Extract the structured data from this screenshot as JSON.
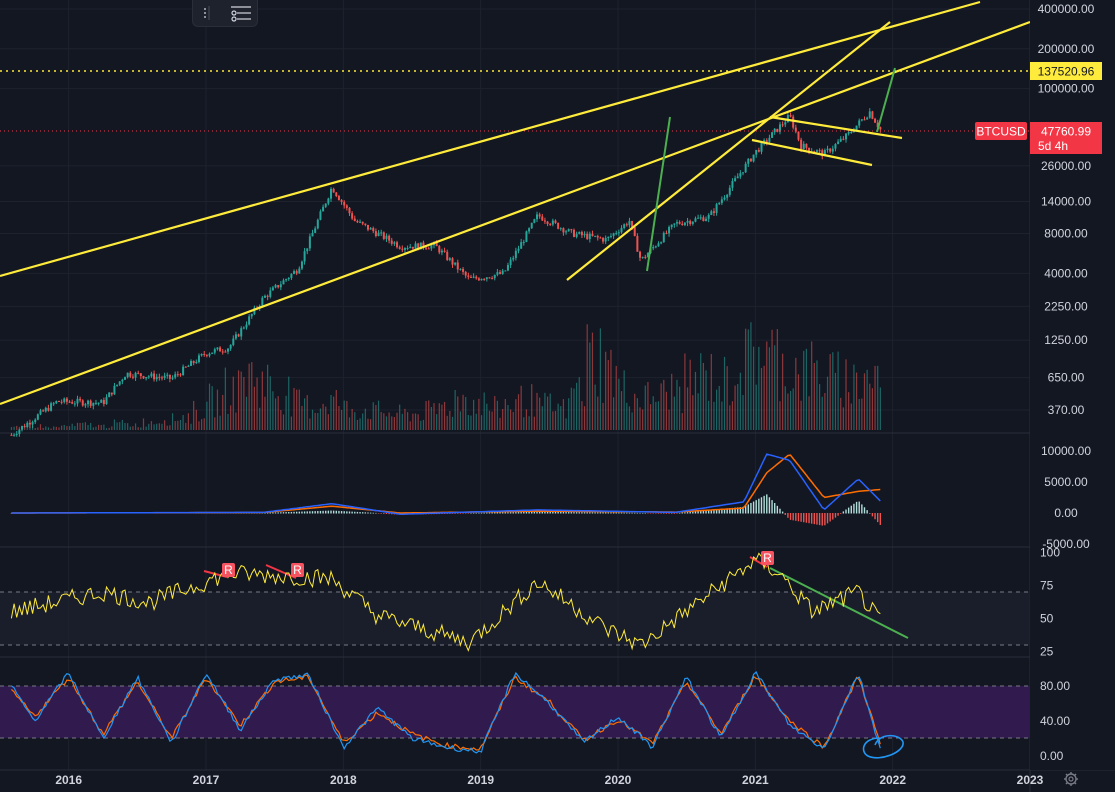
{
  "toolbar": {
    "icons": [
      "grid-icon",
      "object-tree-icon"
    ]
  },
  "price_axis": {
    "ticks": [
      "400000.00",
      "200000.00",
      "100000.00",
      "26000.00",
      "14000.00",
      "8000.00",
      "4000.00",
      "2250.00",
      "1250.00",
      "650.00",
      "370.00"
    ],
    "horizontal_level": "137520.96",
    "symbol": "BTCUSD",
    "last_price": "47760.99",
    "countdown": "5d 4h",
    "colors": {
      "level": "#ffeb3b",
      "last": "#f23645"
    }
  },
  "macd_axis": {
    "ticks": [
      "10000.00",
      "5000.00",
      "0.00",
      "-5000.00"
    ]
  },
  "rsi_axis": {
    "ticks": [
      "100",
      "75",
      "50",
      "25"
    ]
  },
  "stoch_axis": {
    "ticks": [
      "80.00",
      "40.00",
      "0.00"
    ]
  },
  "time_axis": {
    "ticks": [
      "2016",
      "2017",
      "2018",
      "2019",
      "2020",
      "2021",
      "2022",
      "2023"
    ]
  },
  "markers": {
    "label": "R"
  },
  "chart_data": [
    {
      "type": "line",
      "panel": "price",
      "title": "",
      "log_scale": true,
      "ylim": [
        300,
        400000
      ],
      "xlim": [
        "2015-07",
        "2023-01"
      ],
      "series": [
        {
          "x": [
            "2015-08",
            "2015-12",
            "2016-04",
            "2016-06",
            "2016-10",
            "2017-01",
            "2017-03",
            "2017-06",
            "2017-09",
            "2017-12",
            "2018-02",
            "2018-06",
            "2018-09",
            "2018-12",
            "2019-03",
            "2019-06",
            "2019-09",
            "2019-12",
            "2020-02",
            "2020-03",
            "2020-06",
            "2020-09",
            "2020-11",
            "2021-01",
            "2021-04",
            "2021-05",
            "2021-07",
            "2021-09",
            "2021-11",
            "2021-12"
          ],
          "values": [
            240,
            430,
            420,
            700,
            640,
            1000,
            1100,
            2600,
            4300,
            18000,
            10000,
            6400,
            6500,
            3600,
            4000,
            11000,
            8000,
            7200,
            10000,
            5000,
            9500,
            10800,
            19000,
            33000,
            62000,
            37000,
            32000,
            44000,
            67000,
            47760
          ]
        }
      ],
      "annotations": [
        "137520.96"
      ]
    },
    {
      "type": "bar",
      "panel": "volume",
      "title": "",
      "series": [
        {
          "values": [
            2,
            3,
            2,
            3,
            4,
            3,
            5,
            4,
            6,
            8,
            10,
            14,
            22,
            30,
            40,
            35,
            28,
            20,
            18,
            22,
            16,
            15,
            14,
            12,
            12,
            14,
            18,
            24,
            20,
            16,
            20,
            22,
            18,
            16,
            30,
            55,
            45,
            30,
            24,
            26,
            30,
            36,
            40,
            36,
            50,
            62,
            54,
            46,
            44,
            40,
            38,
            36,
            40,
            42
          ]
        }
      ]
    },
    {
      "type": "line",
      "panel": "macd",
      "ylim": [
        -6000,
        12000
      ],
      "series": [
        {
          "x": [
            "2015-08",
            "2017-06",
            "2017-12",
            "2018-06",
            "2019-06",
            "2020-06",
            "2020-12",
            "2021-02",
            "2021-04",
            "2021-07",
            "2021-10",
            "2021-12"
          ],
          "values": [
            0,
            100,
            1500,
            -200,
            500,
            100,
            1800,
            9500,
            8500,
            500,
            5500,
            1800
          ]
        },
        {
          "x": [
            "2015-08",
            "2017-06",
            "2017-12",
            "2018-06",
            "2019-06",
            "2020-06",
            "2020-12",
            "2021-02",
            "2021-04",
            "2021-07",
            "2021-10",
            "2021-12"
          ],
          "values": [
            0,
            80,
            1100,
            0,
            300,
            150,
            800,
            6500,
            9500,
            2500,
            3500,
            3800
          ]
        }
      ]
    },
    {
      "type": "line",
      "panel": "rsi",
      "ylim": [
        20,
        100
      ],
      "series": [
        {
          "x": [
            "2015-08",
            "2016-04",
            "2016-08",
            "2017-03",
            "2017-08",
            "2017-12",
            "2018-04",
            "2018-12",
            "2019-06",
            "2019-12",
            "2020-03",
            "2020-10",
            "2021-01",
            "2021-03",
            "2021-06",
            "2021-10",
            "2021-12"
          ],
          "values": [
            55,
            70,
            62,
            84,
            82,
            80,
            52,
            32,
            78,
            42,
            30,
            75,
            94,
            85,
            55,
            70,
            46
          ]
        }
      ]
    },
    {
      "type": "line",
      "panel": "stoch",
      "ylim": [
        0,
        100
      ],
      "series": [
        {
          "x": [
            "2015-08",
            "2015-10",
            "2016-01",
            "2016-04",
            "2016-07",
            "2016-10",
            "2017-01",
            "2017-04",
            "2017-07",
            "2017-10",
            "2018-01",
            "2018-04",
            "2018-07",
            "2018-10",
            "2019-01",
            "2019-04",
            "2019-07",
            "2019-10",
            "2020-01",
            "2020-04",
            "2020-07",
            "2020-10",
            "2021-01",
            "2021-04",
            "2021-07",
            "2021-10",
            "2021-12"
          ],
          "values": [
            80,
            40,
            95,
            20,
            90,
            15,
            95,
            30,
            88,
            92,
            10,
            55,
            20,
            10,
            5,
            95,
            60,
            15,
            45,
            10,
            90,
            20,
            96,
            35,
            8,
            95,
            5
          ]
        },
        {
          "x": [
            "2015-08",
            "2015-10",
            "2016-01",
            "2016-04",
            "2016-07",
            "2016-10",
            "2017-01",
            "2017-04",
            "2017-07",
            "2017-10",
            "2018-01",
            "2018-04",
            "2018-07",
            "2018-10",
            "2019-01",
            "2019-04",
            "2019-07",
            "2019-10",
            "2020-01",
            "2020-04",
            "2020-07",
            "2020-10",
            "2021-01",
            "2021-04",
            "2021-07",
            "2021-10",
            "2021-12"
          ],
          "values": [
            75,
            45,
            90,
            25,
            85,
            20,
            90,
            35,
            85,
            90,
            15,
            50,
            25,
            12,
            8,
            90,
            62,
            18,
            42,
            14,
            85,
            25,
            92,
            40,
            10,
            92,
            10
          ]
        }
      ]
    }
  ]
}
